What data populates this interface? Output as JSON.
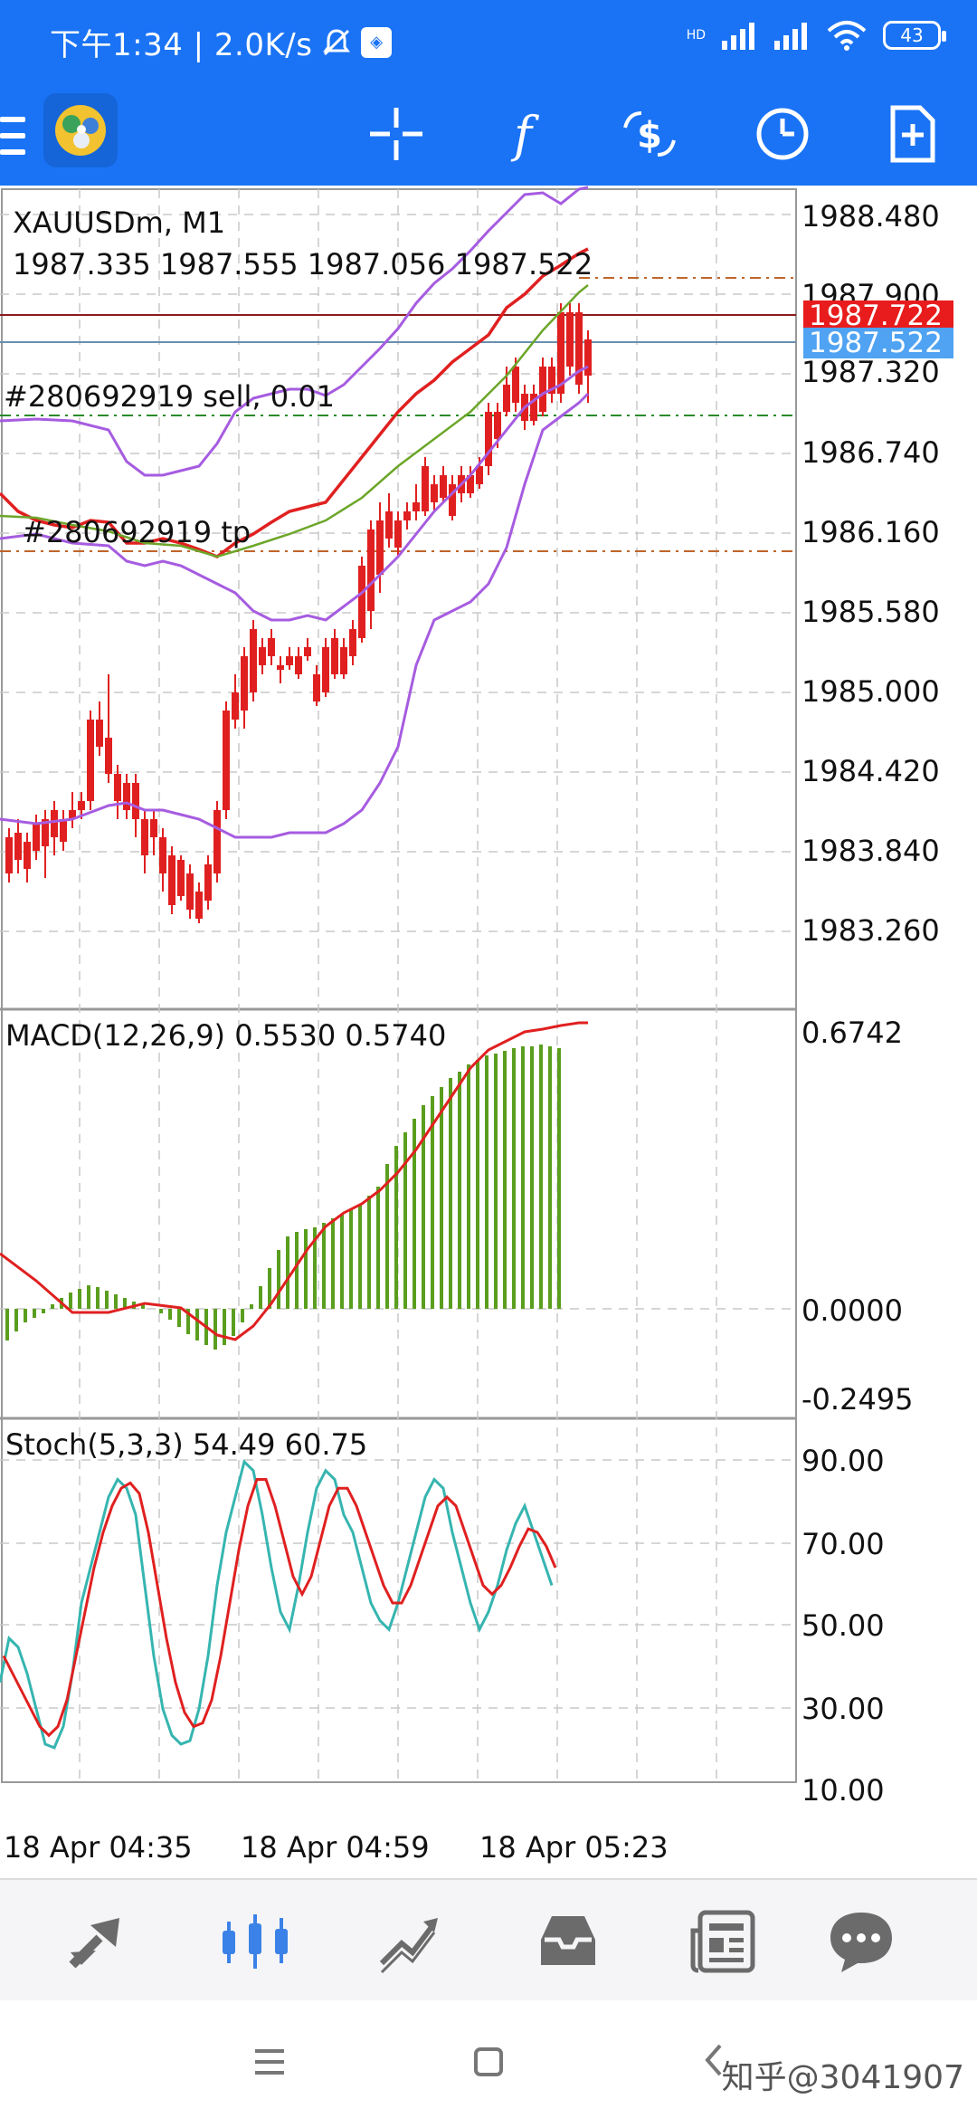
{
  "status_bar": {
    "time_text": "下午1:34 | 2.0K/s",
    "network": "HD",
    "battery": "43"
  },
  "toolbar": {
    "icons": [
      "menu-icon",
      "app-logo",
      "crosshair-icon",
      "function-icon",
      "trade-icon",
      "clock-icon",
      "new-order-icon"
    ]
  },
  "chart": {
    "symbol_line": "XAUUSDm, M1",
    "ohlc_line": "1987.335 1987.555 1987.056 1987.522",
    "order_label": "#280692919 sell, 0.01",
    "tp_label": "#280692919 tp",
    "ask_tag": "1987.722",
    "bid_tag": "1987.522",
    "price_axis": [
      "1988.480",
      "1987.900",
      "1987.320",
      "1986.740",
      "1986.160",
      "1985.580",
      "1985.000",
      "1984.420",
      "1983.840",
      "1983.260"
    ],
    "macd_label": "MACD(12,26,9) 0.5530 0.5740",
    "macd_axis": [
      "0.6742",
      "0.0000",
      "-0.2495"
    ],
    "stoch_label": "Stoch(5,3,3) 54.49 60.75",
    "stoch_axis": [
      "90.00",
      "70.00",
      "50.00",
      "30.00",
      "10.00"
    ],
    "time_axis": [
      "18 Apr 04:35",
      "18 Apr 04:59",
      "18 Apr 05:23"
    ],
    "colors": {
      "bull": "#5a9e1e",
      "bear": "#e02020",
      "bands": "#a65ce0",
      "ask_tag": "#e81c1c",
      "bid_tag": "#4fa3f2"
    }
  },
  "bottom_nav": {
    "items": [
      "quotes-icon",
      "chart-icon",
      "trade-icon",
      "history-icon",
      "news-icon",
      "messages-icon"
    ]
  },
  "system_nav": {
    "watermark": "知乎@3041907"
  }
}
